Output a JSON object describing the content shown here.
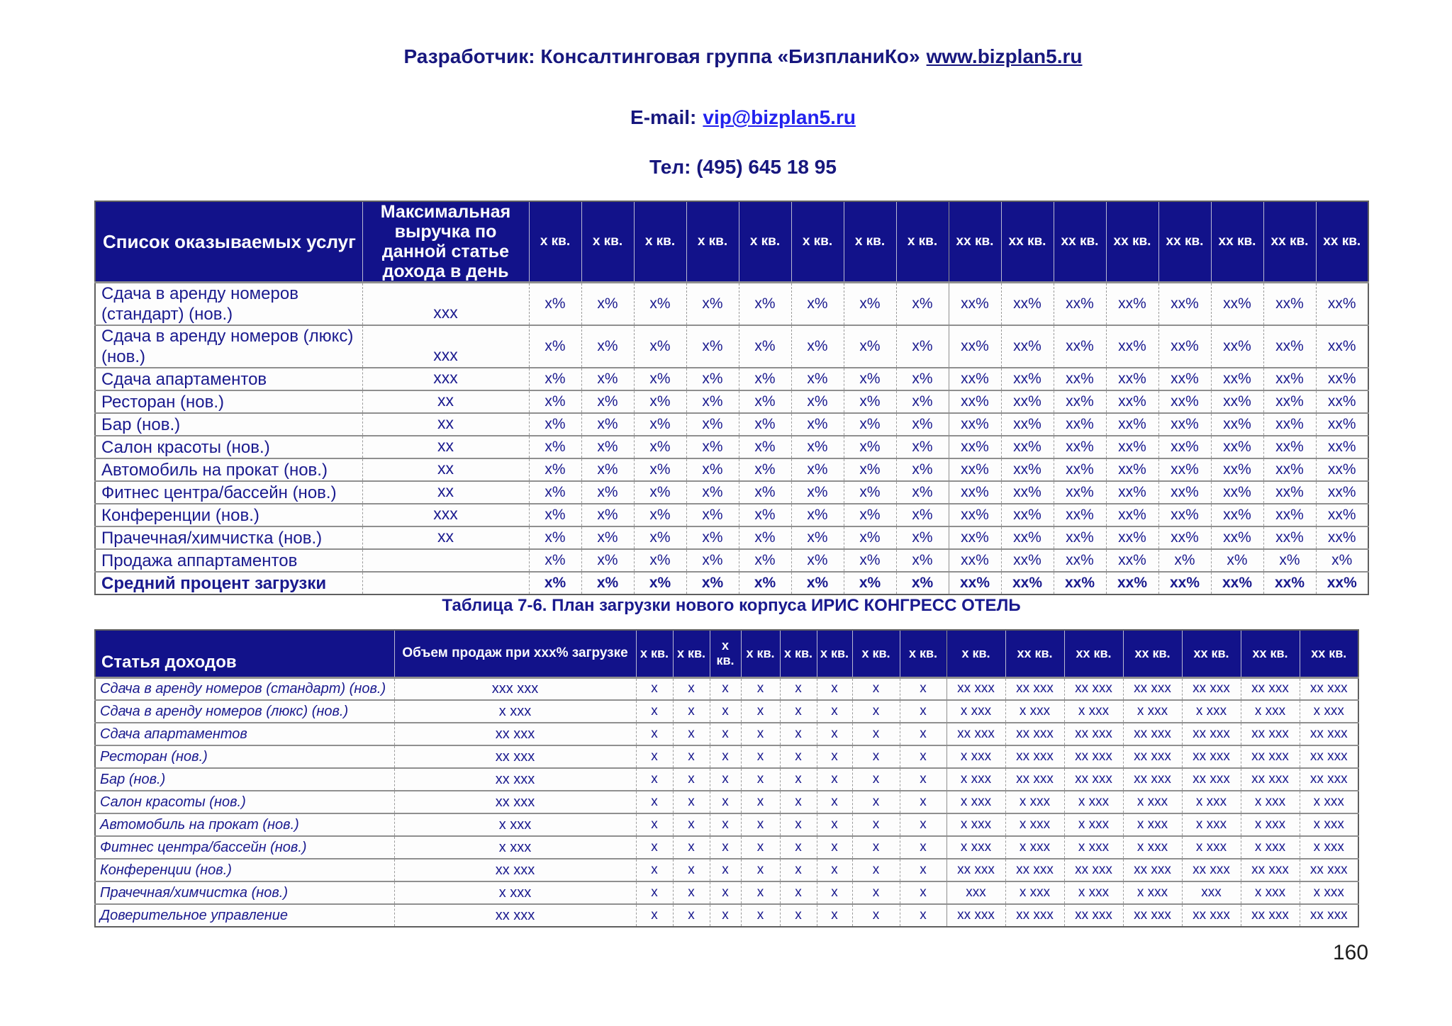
{
  "page_header": {
    "developer_line": {
      "text": "Разработчик: Консалтинговая группа «БизпланиКо»",
      "link": "www.bizplan5.ru"
    },
    "email_line": {
      "label": "E-mail:",
      "link": "vip@bizplan5.ru"
    },
    "phone_line": "Тел: (495) 645 18 95"
  },
  "table1": {
    "col1_header": "Список оказываемых услуг",
    "col2_header": "Максимальная выручка по данной статье дохода в день",
    "quarter_headers": [
      "х кв.",
      "х кв.",
      "х кв.",
      "х кв.",
      "х кв.",
      "х кв.",
      "х кв.",
      "х кв.",
      "хх кв.",
      "хх кв.",
      "хх кв.",
      "хх кв.",
      "хх кв.",
      "хх кв.",
      "хх кв.",
      "хх кв."
    ],
    "rows": [
      {
        "label": "Сдача в аренду номеров (стандарт) (нов.)",
        "max_revenue": "ххх",
        "values": [
          "х%",
          "х%",
          "х%",
          "х%",
          "х%",
          "х%",
          "х%",
          "х%",
          "хх%",
          "хх%",
          "хх%",
          "хх%",
          "хх%",
          "хх%",
          "хх%",
          "хх%"
        ]
      },
      {
        "label": "Сдача в аренду номеров (люкс) (нов.)",
        "max_revenue": "ххх",
        "values": [
          "х%",
          "х%",
          "х%",
          "х%",
          "х%",
          "х%",
          "х%",
          "х%",
          "хх%",
          "хх%",
          "хх%",
          "хх%",
          "хх%",
          "хх%",
          "хх%",
          "хх%"
        ]
      },
      {
        "label": "Сдача апартаментов",
        "max_revenue": "ххх",
        "values": [
          "х%",
          "х%",
          "х%",
          "х%",
          "х%",
          "х%",
          "х%",
          "х%",
          "хх%",
          "хх%",
          "хх%",
          "хх%",
          "хх%",
          "хх%",
          "хх%",
          "хх%"
        ]
      },
      {
        "label": "Ресторан (нов.)",
        "max_revenue": "хх",
        "values": [
          "х%",
          "х%",
          "х%",
          "х%",
          "х%",
          "х%",
          "х%",
          "х%",
          "хх%",
          "хх%",
          "хх%",
          "хх%",
          "хх%",
          "хх%",
          "хх%",
          "хх%"
        ]
      },
      {
        "label": "Бар (нов.)",
        "max_revenue": "хх",
        "values": [
          "х%",
          "х%",
          "х%",
          "х%",
          "х%",
          "х%",
          "х%",
          "х%",
          "хх%",
          "хх%",
          "хх%",
          "хх%",
          "хх%",
          "хх%",
          "хх%",
          "хх%"
        ]
      },
      {
        "label": "Салон красоты (нов.)",
        "max_revenue": "хх",
        "values": [
          "х%",
          "х%",
          "х%",
          "х%",
          "х%",
          "х%",
          "х%",
          "х%",
          "хх%",
          "хх%",
          "хх%",
          "хх%",
          "хх%",
          "хх%",
          "хх%",
          "хх%"
        ]
      },
      {
        "label": "Автомобиль на прокат (нов.)",
        "max_revenue": "хх",
        "values": [
          "х%",
          "х%",
          "х%",
          "х%",
          "х%",
          "х%",
          "х%",
          "х%",
          "хх%",
          "хх%",
          "хх%",
          "хх%",
          "хх%",
          "хх%",
          "хх%",
          "хх%"
        ]
      },
      {
        "label": "Фитнес центра/бассейн (нов.)",
        "max_revenue": "хх",
        "values": [
          "х%",
          "х%",
          "х%",
          "х%",
          "х%",
          "х%",
          "х%",
          "х%",
          "хх%",
          "хх%",
          "хх%",
          "хх%",
          "хх%",
          "хх%",
          "хх%",
          "хх%"
        ]
      },
      {
        "label": "Конференции (нов.)",
        "max_revenue": "ххх",
        "values": [
          "х%",
          "х%",
          "х%",
          "х%",
          "х%",
          "х%",
          "х%",
          "х%",
          "хх%",
          "хх%",
          "хх%",
          "хх%",
          "хх%",
          "хх%",
          "хх%",
          "хх%"
        ]
      },
      {
        "label": "Прачечная/химчистка (нов.)",
        "max_revenue": "хх",
        "values": [
          "х%",
          "х%",
          "х%",
          "х%",
          "х%",
          "х%",
          "х%",
          "х%",
          "хх%",
          "хх%",
          "хх%",
          "хх%",
          "хх%",
          "хх%",
          "хх%",
          "хх%"
        ]
      },
      {
        "label": "Продажа аппартаментов",
        "max_revenue": "",
        "values": [
          "х%",
          "х%",
          "х%",
          "х%",
          "х%",
          "х%",
          "х%",
          "х%",
          "хх%",
          "хх%",
          "хх%",
          "хх%",
          "х%",
          "х%",
          "х%",
          "х%"
        ]
      },
      {
        "label": "Средний процент загрузки",
        "max_revenue": "",
        "bold": true,
        "values": [
          "х%",
          "х%",
          "х%",
          "х%",
          "х%",
          "х%",
          "х%",
          "х%",
          "хх%",
          "хх%",
          "хх%",
          "хх%",
          "хх%",
          "хх%",
          "хх%",
          "хх%"
        ]
      }
    ],
    "caption": "Таблица 7-6. План загрузки нового корпуса ИРИС КОНГРЕСС ОТЕЛЬ"
  },
  "table2": {
    "col1_header": "Статья доходов",
    "col2_header": "Объем продаж при ххх% загрузке",
    "quarter_headers": [
      "х кв.",
      "х кв.",
      "х кв.",
      "х кв.",
      "х кв.",
      "х кв.",
      "х кв.",
      "х кв.",
      "х кв.",
      "хх кв.",
      "хх кв.",
      "хх кв.",
      "хх кв.",
      "хх кв.",
      "хх кв."
    ],
    "rows": [
      {
        "label": "Сдача в аренду номеров (стандарт) (нов.)",
        "volume": "ххх ххх",
        "values": [
          "х",
          "х",
          "х",
          "х",
          "х",
          "х",
          "х",
          "х",
          "хх ххх",
          "хх ххх",
          "хх ххх",
          "хх ххх",
          "хх ххх",
          "хх ххх",
          "хх ххх"
        ]
      },
      {
        "label": "Сдача в аренду номеров (люкс) (нов.)",
        "volume": "х ххх",
        "values": [
          "х",
          "х",
          "х",
          "х",
          "х",
          "х",
          "х",
          "х",
          "х ххх",
          "х ххх",
          "х ххх",
          "х ххх",
          "х ххх",
          "х ххх",
          "х ххх"
        ]
      },
      {
        "label": "Сдача апартаментов",
        "volume": "хх ххх",
        "values": [
          "х",
          "х",
          "х",
          "х",
          "х",
          "х",
          "х",
          "х",
          "хх ххх",
          "хх ххх",
          "хх ххх",
          "хх ххх",
          "хх ххх",
          "хх ххх",
          "хх ххх"
        ]
      },
      {
        "label": "Ресторан (нов.)",
        "volume": "хх ххх",
        "values": [
          "х",
          "х",
          "х",
          "х",
          "х",
          "х",
          "х",
          "х",
          "х ххх",
          "хх ххх",
          "хх ххх",
          "хх ххх",
          "хх ххх",
          "хх ххх",
          "хх ххх"
        ]
      },
      {
        "label": "Бар (нов.)",
        "volume": "хх ххх",
        "values": [
          "х",
          "х",
          "х",
          "х",
          "х",
          "х",
          "х",
          "х",
          "х ххх",
          "хх ххх",
          "хх ххх",
          "хх ххх",
          "хх ххх",
          "хх ххх",
          "хх ххх"
        ]
      },
      {
        "label": "Салон красоты (нов.)",
        "volume": "хх ххх",
        "values": [
          "х",
          "х",
          "х",
          "х",
          "х",
          "х",
          "х",
          "х",
          "х ххх",
          "х ххх",
          "х ххх",
          "х ххх",
          "х ххх",
          "х ххх",
          "х ххх"
        ]
      },
      {
        "label": "Автомобиль на прокат (нов.)",
        "volume": "х ххх",
        "values": [
          "х",
          "х",
          "х",
          "х",
          "х",
          "х",
          "х",
          "х",
          "х ххх",
          "х ххх",
          "х ххх",
          "х ххх",
          "х ххх",
          "х ххх",
          "х ххх"
        ]
      },
      {
        "label": "Фитнес центра/бассейн (нов.)",
        "volume": "х ххх",
        "values": [
          "х",
          "х",
          "х",
          "х",
          "х",
          "х",
          "х",
          "х",
          "х ххх",
          "х ххх",
          "х ххх",
          "х ххх",
          "х ххх",
          "х ххх",
          "х ххх"
        ]
      },
      {
        "label": "Конференции (нов.)",
        "volume": "хх ххх",
        "values": [
          "х",
          "х",
          "х",
          "х",
          "х",
          "х",
          "х",
          "х",
          "хх ххх",
          "хх ххх",
          "хх ххх",
          "хх ххх",
          "хх ххх",
          "хх ххх",
          "хх ххх"
        ]
      },
      {
        "label": "Прачечная/химчистка (нов.)",
        "volume": "х ххх",
        "values": [
          "х",
          "х",
          "х",
          "х",
          "х",
          "х",
          "х",
          "х",
          "ххх",
          "х ххх",
          "х ххх",
          "х ххх",
          "ххх",
          "х ххх",
          "х ххх"
        ]
      },
      {
        "label": "Доверительное управление",
        "volume": "хх ххх",
        "values": [
          "х",
          "х",
          "х",
          "х",
          "х",
          "х",
          "х",
          "х",
          "хх ххх",
          "хх ххх",
          "хх ххх",
          "хх ххх",
          "хх ххх",
          "хх ххх",
          "хх ххх"
        ]
      }
    ]
  },
  "page_number": "160",
  "colors": {
    "header_bg": "#12128a",
    "text_navy": "#1a1a8e",
    "link_blue": "#2222ee"
  }
}
